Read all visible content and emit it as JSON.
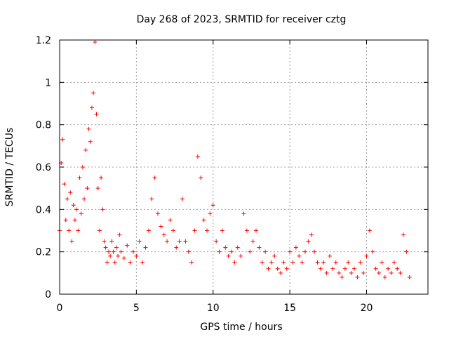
{
  "chart_data": {
    "type": "scatter",
    "title": "Day 268 of 2023, SRMTID for receiver cztg",
    "xlabel": "GPS time / hours",
    "ylabel": "SRMTID / TECUs",
    "xlim": [
      0,
      24
    ],
    "ylim": [
      0,
      1.2
    ],
    "xticks": [
      0,
      5,
      10,
      15,
      20
    ],
    "yticks": [
      0,
      0.2,
      0.4,
      0.6,
      0.8,
      1,
      1.2
    ],
    "xtick_labels": [
      "0",
      "5",
      "10",
      "15",
      "20"
    ],
    "ytick_labels": [
      "0",
      "0.2",
      "0.4",
      "0.6",
      "0.8",
      "1",
      "1.2"
    ],
    "grid": true,
    "marker": "+",
    "marker_color": "#ff0000",
    "series": [
      {
        "name": "SRMTID",
        "x": [
          0.0,
          0.1,
          0.2,
          0.3,
          0.4,
          0.5,
          0.6,
          0.7,
          0.8,
          0.9,
          1.0,
          1.1,
          1.2,
          1.3,
          1.4,
          1.5,
          1.6,
          1.7,
          1.8,
          1.9,
          2.0,
          2.1,
          2.2,
          2.3,
          2.4,
          2.5,
          2.6,
          2.7,
          2.8,
          2.9,
          3.0,
          3.1,
          3.2,
          3.3,
          3.4,
          3.5,
          3.6,
          3.7,
          3.8,
          3.9,
          4.0,
          4.2,
          4.4,
          4.6,
          4.8,
          5.0,
          5.2,
          5.4,
          5.6,
          5.8,
          6.0,
          6.2,
          6.4,
          6.6,
          6.8,
          7.0,
          7.2,
          7.4,
          7.6,
          7.8,
          8.0,
          8.2,
          8.4,
          8.6,
          8.8,
          9.0,
          9.2,
          9.4,
          9.6,
          9.8,
          10.0,
          10.2,
          10.4,
          10.6,
          10.8,
          11.0,
          11.2,
          11.4,
          11.6,
          11.8,
          12.0,
          12.2,
          12.4,
          12.6,
          12.8,
          13.0,
          13.2,
          13.4,
          13.6,
          13.8,
          14.0,
          14.2,
          14.4,
          14.6,
          14.8,
          15.0,
          15.2,
          15.4,
          15.6,
          15.8,
          16.0,
          16.2,
          16.4,
          16.6,
          16.8,
          17.0,
          17.2,
          17.4,
          17.6,
          17.8,
          18.0,
          18.2,
          18.4,
          18.6,
          18.8,
          19.0,
          19.2,
          19.4,
          19.6,
          19.8,
          20.0,
          20.2,
          20.4,
          20.6,
          20.8,
          21.0,
          21.2,
          21.4,
          21.6,
          21.8,
          22.0,
          22.2,
          22.4,
          22.6,
          22.8
        ],
        "y": [
          0.3,
          0.62,
          0.73,
          0.52,
          0.35,
          0.45,
          0.3,
          0.48,
          0.25,
          0.42,
          0.35,
          0.4,
          0.3,
          0.55,
          0.38,
          0.6,
          0.45,
          0.68,
          0.5,
          0.78,
          0.72,
          0.88,
          0.95,
          1.19,
          0.85,
          0.5,
          0.3,
          0.55,
          0.4,
          0.25,
          0.22,
          0.15,
          0.2,
          0.18,
          0.25,
          0.2,
          0.15,
          0.22,
          0.18,
          0.28,
          0.2,
          0.17,
          0.23,
          0.15,
          0.2,
          0.18,
          0.25,
          0.15,
          0.22,
          0.3,
          0.45,
          0.55,
          0.38,
          0.32,
          0.28,
          0.25,
          0.35,
          0.3,
          0.22,
          0.25,
          0.45,
          0.25,
          0.2,
          0.15,
          0.3,
          0.65,
          0.55,
          0.35,
          0.3,
          0.38,
          0.42,
          0.25,
          0.2,
          0.3,
          0.22,
          0.18,
          0.2,
          0.15,
          0.22,
          0.18,
          0.38,
          0.3,
          0.2,
          0.25,
          0.3,
          0.22,
          0.15,
          0.2,
          0.12,
          0.15,
          0.18,
          0.12,
          0.1,
          0.15,
          0.12,
          0.2,
          0.15,
          0.22,
          0.18,
          0.15,
          0.2,
          0.25,
          0.28,
          0.2,
          0.15,
          0.12,
          0.15,
          0.1,
          0.18,
          0.12,
          0.15,
          0.1,
          0.08,
          0.12,
          0.15,
          0.1,
          0.12,
          0.08,
          0.15,
          0.1,
          0.18,
          0.3,
          0.2,
          0.12,
          0.1,
          0.15,
          0.08,
          0.12,
          0.1,
          0.15,
          0.12,
          0.1,
          0.28,
          0.2,
          0.08
        ]
      }
    ]
  }
}
